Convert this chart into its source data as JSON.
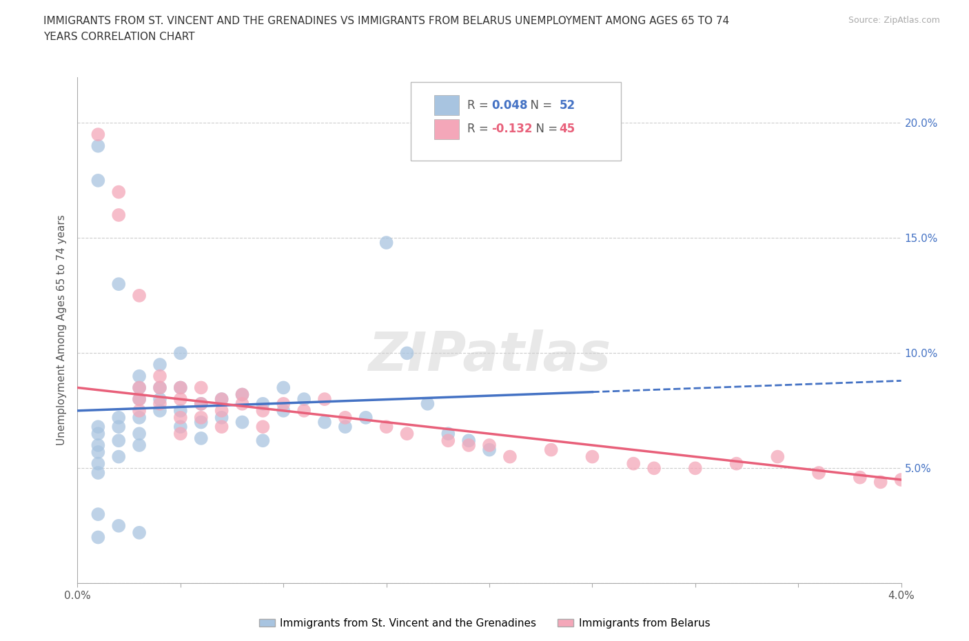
{
  "title_line1": "IMMIGRANTS FROM ST. VINCENT AND THE GRENADINES VS IMMIGRANTS FROM BELARUS UNEMPLOYMENT AMONG AGES 65 TO 74",
  "title_line2": "YEARS CORRELATION CHART",
  "source_text": "Source: ZipAtlas.com",
  "ylabel": "Unemployment Among Ages 65 to 74 years",
  "xlim": [
    0.0,
    0.04
  ],
  "ylim": [
    0.0,
    0.22
  ],
  "R1": 0.048,
  "N1": 52,
  "R2": -0.132,
  "N2": 45,
  "series1_color": "#a8c4e0",
  "series2_color": "#f4a7b9",
  "trend1_color": "#4472c4",
  "trend2_color": "#e8607a",
  "series1_name": "Immigrants from St. Vincent and the Grenadines",
  "series2_name": "Immigrants from Belarus",
  "watermark": "ZIPatlas",
  "series1_x": [
    0.001,
    0.001,
    0.001,
    0.001,
    0.001,
    0.001,
    0.001,
    0.001,
    0.002,
    0.002,
    0.002,
    0.002,
    0.002,
    0.003,
    0.003,
    0.003,
    0.003,
    0.003,
    0.003,
    0.004,
    0.004,
    0.004,
    0.004,
    0.005,
    0.005,
    0.005,
    0.005,
    0.006,
    0.006,
    0.006,
    0.007,
    0.007,
    0.008,
    0.008,
    0.009,
    0.009,
    0.01,
    0.01,
    0.011,
    0.012,
    0.013,
    0.014,
    0.015,
    0.016,
    0.017,
    0.018,
    0.019,
    0.02,
    0.001,
    0.001,
    0.002,
    0.003
  ],
  "series1_y": [
    0.19,
    0.175,
    0.068,
    0.065,
    0.06,
    0.057,
    0.052,
    0.048,
    0.13,
    0.072,
    0.068,
    0.062,
    0.055,
    0.09,
    0.085,
    0.08,
    0.072,
    0.065,
    0.06,
    0.095,
    0.085,
    0.08,
    0.075,
    0.1,
    0.085,
    0.075,
    0.068,
    0.078,
    0.07,
    0.063,
    0.08,
    0.072,
    0.082,
    0.07,
    0.078,
    0.062,
    0.085,
    0.075,
    0.08,
    0.07,
    0.068,
    0.072,
    0.148,
    0.1,
    0.078,
    0.065,
    0.062,
    0.058,
    0.03,
    0.02,
    0.025,
    0.022
  ],
  "series2_x": [
    0.001,
    0.002,
    0.002,
    0.003,
    0.003,
    0.003,
    0.003,
    0.004,
    0.004,
    0.004,
    0.005,
    0.005,
    0.005,
    0.005,
    0.006,
    0.006,
    0.006,
    0.007,
    0.007,
    0.007,
    0.008,
    0.008,
    0.009,
    0.009,
    0.01,
    0.011,
    0.012,
    0.013,
    0.015,
    0.016,
    0.018,
    0.019,
    0.02,
    0.021,
    0.023,
    0.025,
    0.027,
    0.028,
    0.03,
    0.032,
    0.034,
    0.036,
    0.038,
    0.039,
    0.04
  ],
  "series2_y": [
    0.195,
    0.17,
    0.16,
    0.125,
    0.085,
    0.08,
    0.075,
    0.09,
    0.085,
    0.078,
    0.085,
    0.08,
    0.072,
    0.065,
    0.085,
    0.078,
    0.072,
    0.08,
    0.075,
    0.068,
    0.082,
    0.078,
    0.075,
    0.068,
    0.078,
    0.075,
    0.08,
    0.072,
    0.068,
    0.065,
    0.062,
    0.06,
    0.06,
    0.055,
    0.058,
    0.055,
    0.052,
    0.05,
    0.05,
    0.052,
    0.055,
    0.048,
    0.046,
    0.044,
    0.045
  ]
}
